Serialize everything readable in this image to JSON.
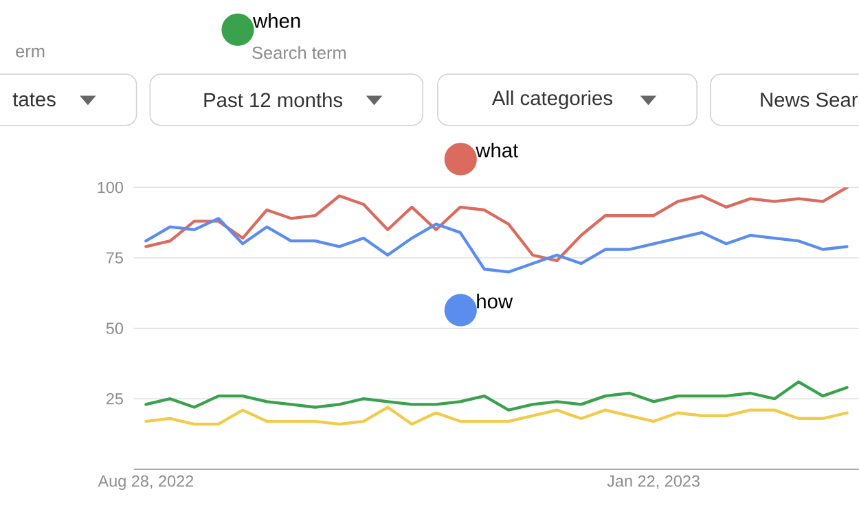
{
  "chart_data": {
    "type": "line",
    "categories": [
      "Aug 28, 2022",
      null,
      null,
      null,
      null,
      null,
      null,
      null,
      null,
      null,
      null,
      null,
      null,
      null,
      null,
      null,
      null,
      null,
      null,
      null,
      null,
      "Jan 22, 2023",
      null,
      null,
      null,
      null,
      null,
      null,
      null,
      null
    ],
    "series": [
      {
        "name": "what",
        "color": "#db6b5e",
        "values": [
          79,
          81,
          88,
          88,
          82,
          92,
          89,
          90,
          97,
          94,
          85,
          93,
          85,
          93,
          92,
          87,
          76,
          74,
          83,
          90,
          90,
          90,
          95,
          97,
          93,
          96,
          95,
          96,
          95,
          100
        ]
      },
      {
        "name": "how",
        "color": "#5b8def",
        "values": [
          81,
          86,
          85,
          89,
          80,
          86,
          81,
          81,
          79,
          82,
          76,
          82,
          87,
          84,
          71,
          70,
          73,
          76,
          73,
          78,
          78,
          80,
          82,
          84,
          80,
          83,
          82,
          81,
          78,
          79
        ]
      },
      {
        "name": "when",
        "color": "#3aa14d",
        "values": [
          23,
          25,
          22,
          26,
          26,
          24,
          23,
          22,
          23,
          25,
          24,
          23,
          23,
          24,
          26,
          21,
          23,
          24,
          23,
          26,
          27,
          24,
          26,
          26,
          26,
          27,
          25,
          31,
          26,
          29
        ]
      },
      {
        "color": "#f2cb4c",
        "values": [
          17,
          18,
          16,
          16,
          21,
          17,
          17,
          17,
          16,
          17,
          22,
          16,
          20,
          17,
          17,
          17,
          19,
          21,
          18,
          21,
          19,
          17,
          20,
          19,
          19,
          21,
          21,
          18,
          18,
          20
        ]
      }
    ],
    "ylim": [
      0,
      100
    ],
    "yticks": [
      25,
      50,
      75,
      100
    ],
    "grid": "y",
    "legend": "top",
    "line_style": "solid",
    "marker": "none",
    "annotations": [
      "erm",
      "Search term",
      "tates",
      "Past 12 months",
      "All categories",
      "News Sear"
    ]
  }
}
